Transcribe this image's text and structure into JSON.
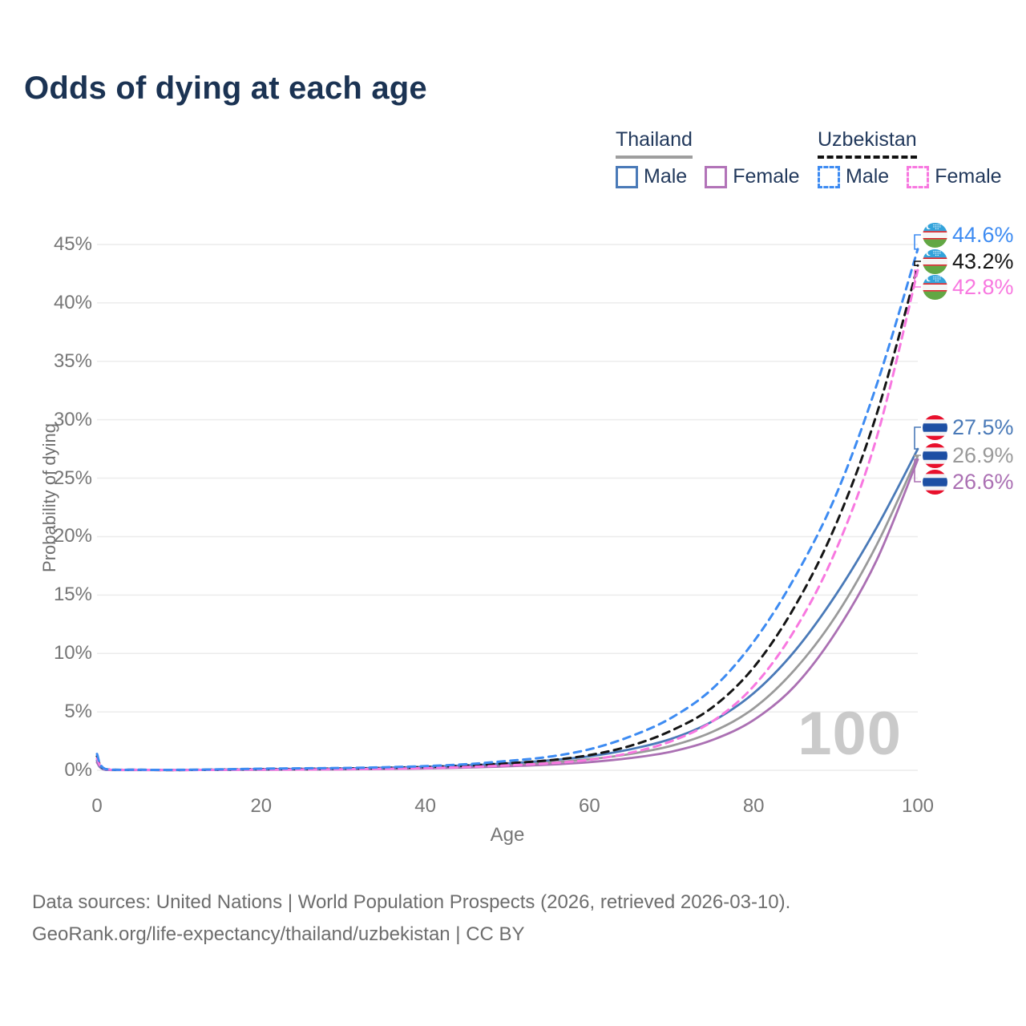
{
  "title": "Odds of dying at each age",
  "legend": {
    "groups": [
      {
        "country": "Thailand",
        "line_style": "solid",
        "line_style_color": "#9e9e9e",
        "items": [
          {
            "label": "Male",
            "color": "#4a7ab8"
          },
          {
            "label": "Female",
            "color": "#b273b8"
          }
        ]
      },
      {
        "country": "Uzbekistan",
        "line_style": "dashed",
        "line_style_color": "#111111",
        "items": [
          {
            "label": "Male",
            "color": "#3d8bf2"
          },
          {
            "label": "Female",
            "color": "#f878e0"
          }
        ]
      }
    ]
  },
  "watermark": "100",
  "footer": {
    "line1": "Data sources: United Nations | World Population Prospects (2026, retrieved 2026-03-10).",
    "line2": "GeoRank.org/life-expectancy/thailand/uzbekistan | CC BY"
  },
  "chart_data": {
    "type": "line",
    "title": "Odds of dying at each age",
    "xlabel": "Age",
    "ylabel": "Probability of dying",
    "xlim": [
      0,
      100
    ],
    "ylim": [
      0,
      45
    ],
    "x_ticks": [
      0,
      20,
      40,
      60,
      80,
      100
    ],
    "y_ticks": [
      "0%",
      "5%",
      "10%",
      "15%",
      "20%",
      "25%",
      "30%",
      "35%",
      "40%",
      "45%"
    ],
    "grid": "horizontal",
    "legend_position": "top-right",
    "ages": [
      0,
      1,
      5,
      10,
      15,
      20,
      25,
      30,
      35,
      40,
      45,
      50,
      55,
      60,
      65,
      70,
      75,
      80,
      85,
      90,
      95,
      100
    ],
    "series": [
      {
        "name": "Thailand Both sexes",
        "country": "Thailand",
        "sex": "Both",
        "color": "#9a9a9a",
        "dashed": false,
        "end_value": 26.9,
        "end_label": "26.9%",
        "label_color": "#9a9a9a",
        "flag": "thailand-flag-icon",
        "values": [
          0.75,
          0.05,
          0.03,
          0.02,
          0.05,
          0.08,
          0.1,
          0.12,
          0.17,
          0.23,
          0.33,
          0.47,
          0.66,
          0.95,
          1.4,
          2.1,
          3.3,
          5.3,
          8.6,
          13.2,
          19.3,
          26.9
        ]
      },
      {
        "name": "Thailand Female",
        "country": "Thailand",
        "sex": "Female",
        "color": "#ab70b3",
        "dashed": false,
        "end_value": 26.6,
        "end_label": "26.6%",
        "label_color": "#ab70b3",
        "flag": "thailand-flag-icon",
        "values": [
          0.65,
          0.05,
          0.02,
          0.02,
          0.03,
          0.05,
          0.06,
          0.08,
          0.11,
          0.16,
          0.23,
          0.34,
          0.48,
          0.7,
          1.05,
          1.6,
          2.6,
          4.3,
          7.2,
          11.8,
          18.0,
          26.6
        ]
      },
      {
        "name": "Thailand Male",
        "country": "Thailand",
        "sex": "Male",
        "color": "#4a7ab8",
        "dashed": false,
        "end_value": 27.5,
        "end_label": "27.5%",
        "label_color": "#4a7ab8",
        "flag": "thailand-flag-icon",
        "values": [
          0.85,
          0.06,
          0.03,
          0.03,
          0.06,
          0.1,
          0.13,
          0.16,
          0.22,
          0.3,
          0.42,
          0.6,
          0.85,
          1.2,
          1.8,
          2.7,
          4.2,
          6.6,
          10.2,
          15.0,
          20.8,
          27.5
        ]
      },
      {
        "name": "Uzbekistan Both sexes",
        "country": "Uzbekistan",
        "sex": "Both",
        "color": "#151515",
        "dashed": true,
        "end_value": 43.2,
        "end_label": "43.2%",
        "label_color": "#151515",
        "flag": "uzbekistan-flag-icon",
        "values": [
          1.2,
          0.1,
          0.04,
          0.03,
          0.06,
          0.1,
          0.12,
          0.15,
          0.2,
          0.28,
          0.4,
          0.6,
          0.85,
          1.3,
          2.1,
          3.4,
          5.4,
          8.8,
          14.0,
          21.0,
          30.5,
          43.2
        ]
      },
      {
        "name": "Uzbekistan Female",
        "country": "Uzbekistan",
        "sex": "Female",
        "color": "#f878e0",
        "dashed": true,
        "end_value": 42.8,
        "end_label": "42.8%",
        "label_color": "#f878e0",
        "flag": "uzbekistan-flag-icon",
        "values": [
          1.0,
          0.09,
          0.04,
          0.03,
          0.04,
          0.06,
          0.07,
          0.09,
          0.13,
          0.19,
          0.28,
          0.42,
          0.6,
          0.9,
          1.5,
          2.5,
          4.2,
          7.2,
          12.0,
          18.8,
          28.5,
          42.8
        ]
      },
      {
        "name": "Uzbekistan Male",
        "country": "Uzbekistan",
        "sex": "Male",
        "color": "#3d8bf2",
        "dashed": true,
        "end_value": 44.6,
        "end_label": "44.6%",
        "label_color": "#3d8bf2",
        "flag": "uzbekistan-flag-icon",
        "values": [
          1.4,
          0.12,
          0.05,
          0.04,
          0.08,
          0.14,
          0.17,
          0.2,
          0.26,
          0.36,
          0.52,
          0.8,
          1.15,
          1.8,
          2.9,
          4.5,
          7.0,
          11.0,
          16.5,
          23.5,
          33.0,
          44.6
        ]
      }
    ]
  }
}
